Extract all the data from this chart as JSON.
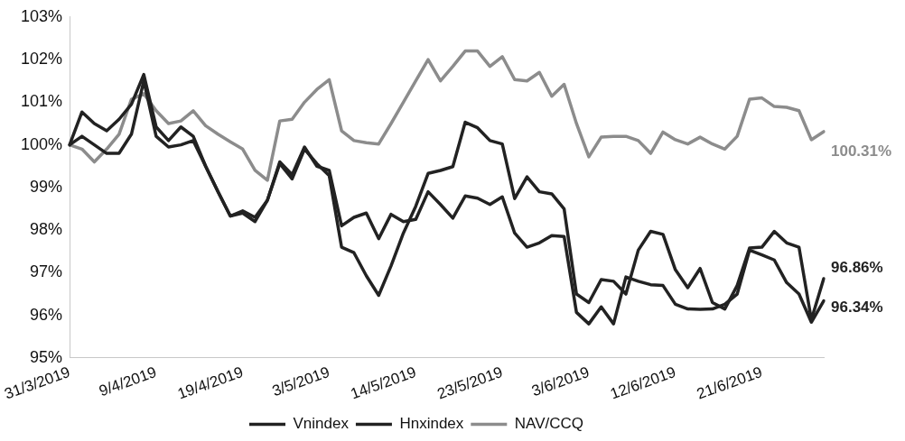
{
  "chart_data": {
    "type": "line",
    "categories": [
      "31/3/2019",
      null,
      null,
      null,
      null,
      null,
      null,
      "9/4/2019",
      null,
      null,
      null,
      null,
      null,
      null,
      "19/4/2019",
      null,
      null,
      null,
      null,
      null,
      null,
      "3/5/2019",
      null,
      null,
      null,
      null,
      null,
      null,
      "14/5/2019",
      null,
      null,
      null,
      null,
      null,
      null,
      "23/5/2019",
      null,
      null,
      null,
      null,
      null,
      null,
      "3/6/2019",
      null,
      null,
      null,
      null,
      null,
      null,
      "12/6/2019",
      null,
      null,
      null,
      null,
      null,
      null,
      "21/6/2019",
      null,
      null,
      null,
      null,
      null
    ],
    "series": [
      {
        "name": "Vnindex",
        "color": "#222222",
        "values": [
          100.0,
          100.77,
          100.5,
          100.33,
          100.6,
          100.95,
          101.65,
          100.42,
          100.1,
          100.42,
          100.2,
          99.5,
          98.9,
          98.33,
          98.4,
          98.2,
          98.7,
          99.56,
          99.2,
          99.9,
          99.56,
          99.28,
          97.6,
          97.47,
          96.93,
          96.47,
          97.16,
          97.93,
          98.56,
          99.33,
          99.4,
          99.49,
          100.53,
          100.4,
          100.1,
          100.02,
          98.74,
          99.25,
          98.9,
          98.85,
          98.5,
          96.5,
          96.3,
          96.84,
          96.8,
          96.5,
          97.53,
          97.97,
          97.9,
          97.07,
          96.65,
          97.1,
          96.3,
          96.15,
          96.7,
          97.58,
          97.6,
          97.97,
          97.7,
          97.6,
          95.9,
          96.86
        ],
        "value_labels": [
          null,
          null,
          null,
          null,
          null,
          null,
          null,
          null,
          null,
          null,
          null,
          null,
          null,
          null,
          null,
          null,
          null,
          null,
          null,
          null,
          null,
          null,
          null,
          null,
          null,
          null,
          null,
          null,
          null,
          null,
          null,
          null,
          null,
          null,
          null,
          null,
          null,
          null,
          null,
          null,
          null,
          null,
          null,
          null,
          null,
          null,
          null,
          null,
          null,
          null,
          null,
          null,
          null,
          null,
          null,
          null,
          null,
          null,
          null,
          null,
          null,
          "96.86%"
        ]
      },
      {
        "name": "Hnxindex",
        "color": "#222222",
        "values": [
          100.0,
          100.2,
          100.0,
          99.8,
          99.8,
          100.25,
          101.5,
          100.2,
          99.95,
          100.0,
          100.1,
          99.5,
          98.9,
          98.33,
          98.45,
          98.3,
          98.7,
          99.6,
          99.3,
          99.95,
          99.5,
          99.4,
          98.1,
          98.3,
          98.4,
          97.8,
          98.37,
          98.2,
          98.25,
          98.9,
          98.6,
          98.28,
          98.8,
          98.75,
          98.6,
          98.78,
          97.93,
          97.6,
          97.7,
          97.87,
          97.85,
          96.07,
          95.8,
          96.2,
          95.8,
          96.9,
          96.8,
          96.72,
          96.7,
          96.26,
          96.15,
          96.14,
          96.15,
          96.26,
          96.5,
          97.53,
          97.42,
          97.3,
          96.77,
          96.5,
          95.84,
          96.34
        ],
        "value_labels": [
          null,
          null,
          null,
          null,
          null,
          null,
          null,
          null,
          null,
          null,
          null,
          null,
          null,
          null,
          null,
          null,
          null,
          null,
          null,
          null,
          null,
          null,
          null,
          null,
          null,
          null,
          null,
          null,
          null,
          null,
          null,
          null,
          null,
          null,
          null,
          null,
          null,
          null,
          null,
          null,
          null,
          null,
          null,
          null,
          null,
          null,
          null,
          null,
          null,
          null,
          null,
          null,
          null,
          null,
          null,
          null,
          null,
          null,
          null,
          null,
          null,
          "96.34%"
        ]
      },
      {
        "name": "NAV/CCQ",
        "color": "#8c8c8c",
        "values": [
          100.0,
          99.9,
          99.6,
          99.9,
          100.25,
          101.07,
          101.2,
          100.8,
          100.5,
          100.56,
          100.8,
          100.45,
          100.25,
          100.07,
          99.9,
          99.4,
          99.17,
          100.56,
          100.6,
          101.0,
          101.3,
          101.53,
          100.33,
          100.1,
          100.05,
          100.02,
          100.5,
          101.0,
          101.5,
          102.0,
          101.5,
          101.84,
          102.2,
          102.2,
          101.84,
          102.07,
          101.53,
          101.5,
          101.7,
          101.14,
          101.42,
          100.5,
          99.72,
          100.18,
          100.2,
          100.2,
          100.1,
          99.8,
          100.3,
          100.12,
          100.02,
          100.18,
          100.02,
          99.9,
          100.2,
          101.07,
          101.1,
          100.9,
          100.88,
          100.8,
          100.12,
          100.31
        ],
        "value_labels": [
          null,
          null,
          null,
          null,
          null,
          null,
          null,
          null,
          null,
          null,
          null,
          null,
          null,
          null,
          null,
          null,
          null,
          null,
          null,
          null,
          null,
          null,
          null,
          null,
          null,
          null,
          null,
          null,
          null,
          null,
          null,
          null,
          null,
          null,
          null,
          null,
          null,
          null,
          null,
          null,
          null,
          null,
          null,
          null,
          null,
          null,
          null,
          null,
          null,
          null,
          null,
          null,
          null,
          null,
          null,
          null,
          null,
          null,
          null,
          null,
          null,
          "100.31%"
        ]
      }
    ],
    "ylim": [
      95,
      103
    ],
    "yticks": [
      {
        "value": 95,
        "label": "95%"
      },
      {
        "value": 96,
        "label": "96%"
      },
      {
        "value": 97,
        "label": "97%"
      },
      {
        "value": 98,
        "label": "98%"
      },
      {
        "value": 99,
        "label": "99%"
      },
      {
        "value": 100,
        "label": "100%"
      },
      {
        "value": 101,
        "label": "101%"
      },
      {
        "value": 102,
        "label": "102%"
      },
      {
        "value": 103,
        "label": "103%"
      }
    ],
    "grid": false,
    "legend": "bottom",
    "marker": "none",
    "line_style": "solid"
  }
}
